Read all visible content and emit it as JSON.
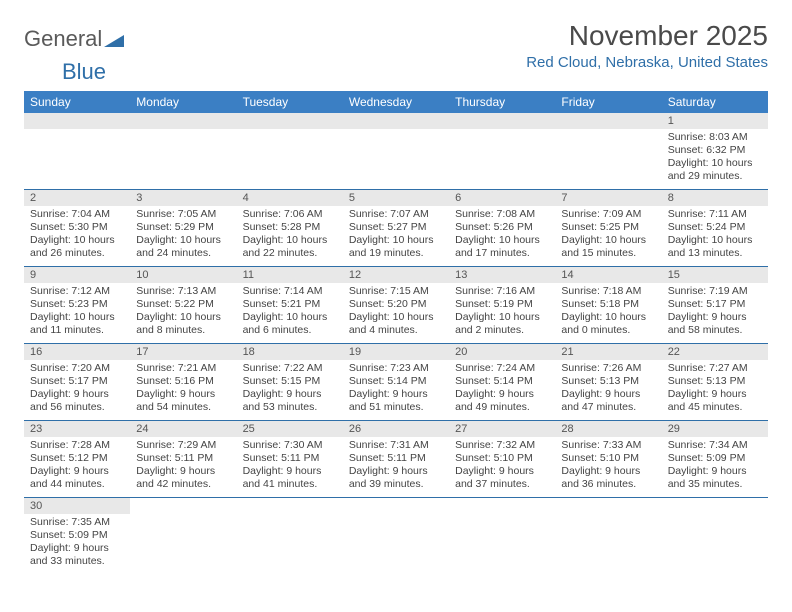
{
  "logo": {
    "part1": "General",
    "part2": "Blue"
  },
  "title": "November 2025",
  "location": "Red Cloud, Nebraska, United States",
  "colors": {
    "header_bg": "#3b7fc4",
    "header_text": "#ffffff",
    "daynum_bg": "#e8e8e8",
    "border": "#2f6fa8",
    "title_color": "#4a4a4a",
    "location_color": "#2f6fa8"
  },
  "weekdays": [
    "Sunday",
    "Monday",
    "Tuesday",
    "Wednesday",
    "Thursday",
    "Friday",
    "Saturday"
  ],
  "grid": [
    [
      null,
      null,
      null,
      null,
      null,
      null,
      {
        "n": "1",
        "sr": "8:03 AM",
        "ss": "6:32 PM",
        "dl": "10 hours and 29 minutes."
      }
    ],
    [
      {
        "n": "2",
        "sr": "7:04 AM",
        "ss": "5:30 PM",
        "dl": "10 hours and 26 minutes."
      },
      {
        "n": "3",
        "sr": "7:05 AM",
        "ss": "5:29 PM",
        "dl": "10 hours and 24 minutes."
      },
      {
        "n": "4",
        "sr": "7:06 AM",
        "ss": "5:28 PM",
        "dl": "10 hours and 22 minutes."
      },
      {
        "n": "5",
        "sr": "7:07 AM",
        "ss": "5:27 PM",
        "dl": "10 hours and 19 minutes."
      },
      {
        "n": "6",
        "sr": "7:08 AM",
        "ss": "5:26 PM",
        "dl": "10 hours and 17 minutes."
      },
      {
        "n": "7",
        "sr": "7:09 AM",
        "ss": "5:25 PM",
        "dl": "10 hours and 15 minutes."
      },
      {
        "n": "8",
        "sr": "7:11 AM",
        "ss": "5:24 PM",
        "dl": "10 hours and 13 minutes."
      }
    ],
    [
      {
        "n": "9",
        "sr": "7:12 AM",
        "ss": "5:23 PM",
        "dl": "10 hours and 11 minutes."
      },
      {
        "n": "10",
        "sr": "7:13 AM",
        "ss": "5:22 PM",
        "dl": "10 hours and 8 minutes."
      },
      {
        "n": "11",
        "sr": "7:14 AM",
        "ss": "5:21 PM",
        "dl": "10 hours and 6 minutes."
      },
      {
        "n": "12",
        "sr": "7:15 AM",
        "ss": "5:20 PM",
        "dl": "10 hours and 4 minutes."
      },
      {
        "n": "13",
        "sr": "7:16 AM",
        "ss": "5:19 PM",
        "dl": "10 hours and 2 minutes."
      },
      {
        "n": "14",
        "sr": "7:18 AM",
        "ss": "5:18 PM",
        "dl": "10 hours and 0 minutes."
      },
      {
        "n": "15",
        "sr": "7:19 AM",
        "ss": "5:17 PM",
        "dl": "9 hours and 58 minutes."
      }
    ],
    [
      {
        "n": "16",
        "sr": "7:20 AM",
        "ss": "5:17 PM",
        "dl": "9 hours and 56 minutes."
      },
      {
        "n": "17",
        "sr": "7:21 AM",
        "ss": "5:16 PM",
        "dl": "9 hours and 54 minutes."
      },
      {
        "n": "18",
        "sr": "7:22 AM",
        "ss": "5:15 PM",
        "dl": "9 hours and 53 minutes."
      },
      {
        "n": "19",
        "sr": "7:23 AM",
        "ss": "5:14 PM",
        "dl": "9 hours and 51 minutes."
      },
      {
        "n": "20",
        "sr": "7:24 AM",
        "ss": "5:14 PM",
        "dl": "9 hours and 49 minutes."
      },
      {
        "n": "21",
        "sr": "7:26 AM",
        "ss": "5:13 PM",
        "dl": "9 hours and 47 minutes."
      },
      {
        "n": "22",
        "sr": "7:27 AM",
        "ss": "5:13 PM",
        "dl": "9 hours and 45 minutes."
      }
    ],
    [
      {
        "n": "23",
        "sr": "7:28 AM",
        "ss": "5:12 PM",
        "dl": "9 hours and 44 minutes."
      },
      {
        "n": "24",
        "sr": "7:29 AM",
        "ss": "5:11 PM",
        "dl": "9 hours and 42 minutes."
      },
      {
        "n": "25",
        "sr": "7:30 AM",
        "ss": "5:11 PM",
        "dl": "9 hours and 41 minutes."
      },
      {
        "n": "26",
        "sr": "7:31 AM",
        "ss": "5:11 PM",
        "dl": "9 hours and 39 minutes."
      },
      {
        "n": "27",
        "sr": "7:32 AM",
        "ss": "5:10 PM",
        "dl": "9 hours and 37 minutes."
      },
      {
        "n": "28",
        "sr": "7:33 AM",
        "ss": "5:10 PM",
        "dl": "9 hours and 36 minutes."
      },
      {
        "n": "29",
        "sr": "7:34 AM",
        "ss": "5:09 PM",
        "dl": "9 hours and 35 minutes."
      }
    ],
    [
      {
        "n": "30",
        "sr": "7:35 AM",
        "ss": "5:09 PM",
        "dl": "9 hours and 33 minutes."
      },
      null,
      null,
      null,
      null,
      null,
      null
    ]
  ],
  "labels": {
    "sunrise": "Sunrise:",
    "sunset": "Sunset:",
    "daylight": "Daylight:"
  }
}
